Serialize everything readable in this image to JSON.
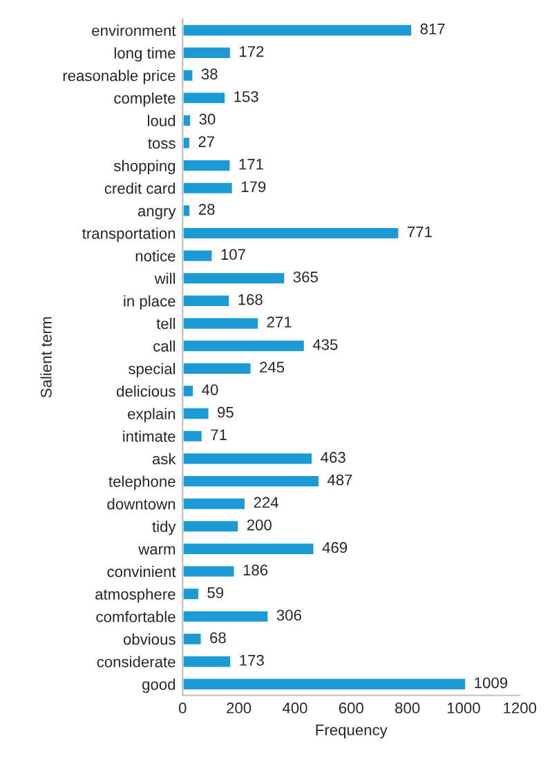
{
  "chart_data": {
    "type": "bar",
    "orientation": "horizontal",
    "xlabel": "Frequency",
    "ylabel": "Salient term",
    "categories": [
      "environment",
      "long time",
      "reasonable price",
      "complete",
      "loud",
      "toss",
      "shopping",
      "credit card",
      "angry",
      "transportation",
      "notice",
      "will",
      "in place",
      "tell",
      "call",
      "special",
      "delicious",
      "explain",
      "intimate",
      "ask",
      "telephone",
      "downtown",
      "tidy",
      "warm",
      "convinient",
      "atmosphere",
      "comfortable",
      "obvious",
      "considerate",
      "good"
    ],
    "values": [
      817,
      172,
      38,
      153,
      30,
      27,
      171,
      179,
      28,
      771,
      107,
      365,
      168,
      271,
      435,
      245,
      40,
      95,
      71,
      463,
      487,
      224,
      200,
      469,
      186,
      59,
      306,
      68,
      173,
      1009
    ],
    "color": "#1b9ad6",
    "xlim": [
      0,
      1200
    ],
    "xticks": [
      0,
      200,
      400,
      600,
      800,
      1000,
      1200
    ],
    "data_labels": true,
    "grid": false,
    "legend": false
  }
}
